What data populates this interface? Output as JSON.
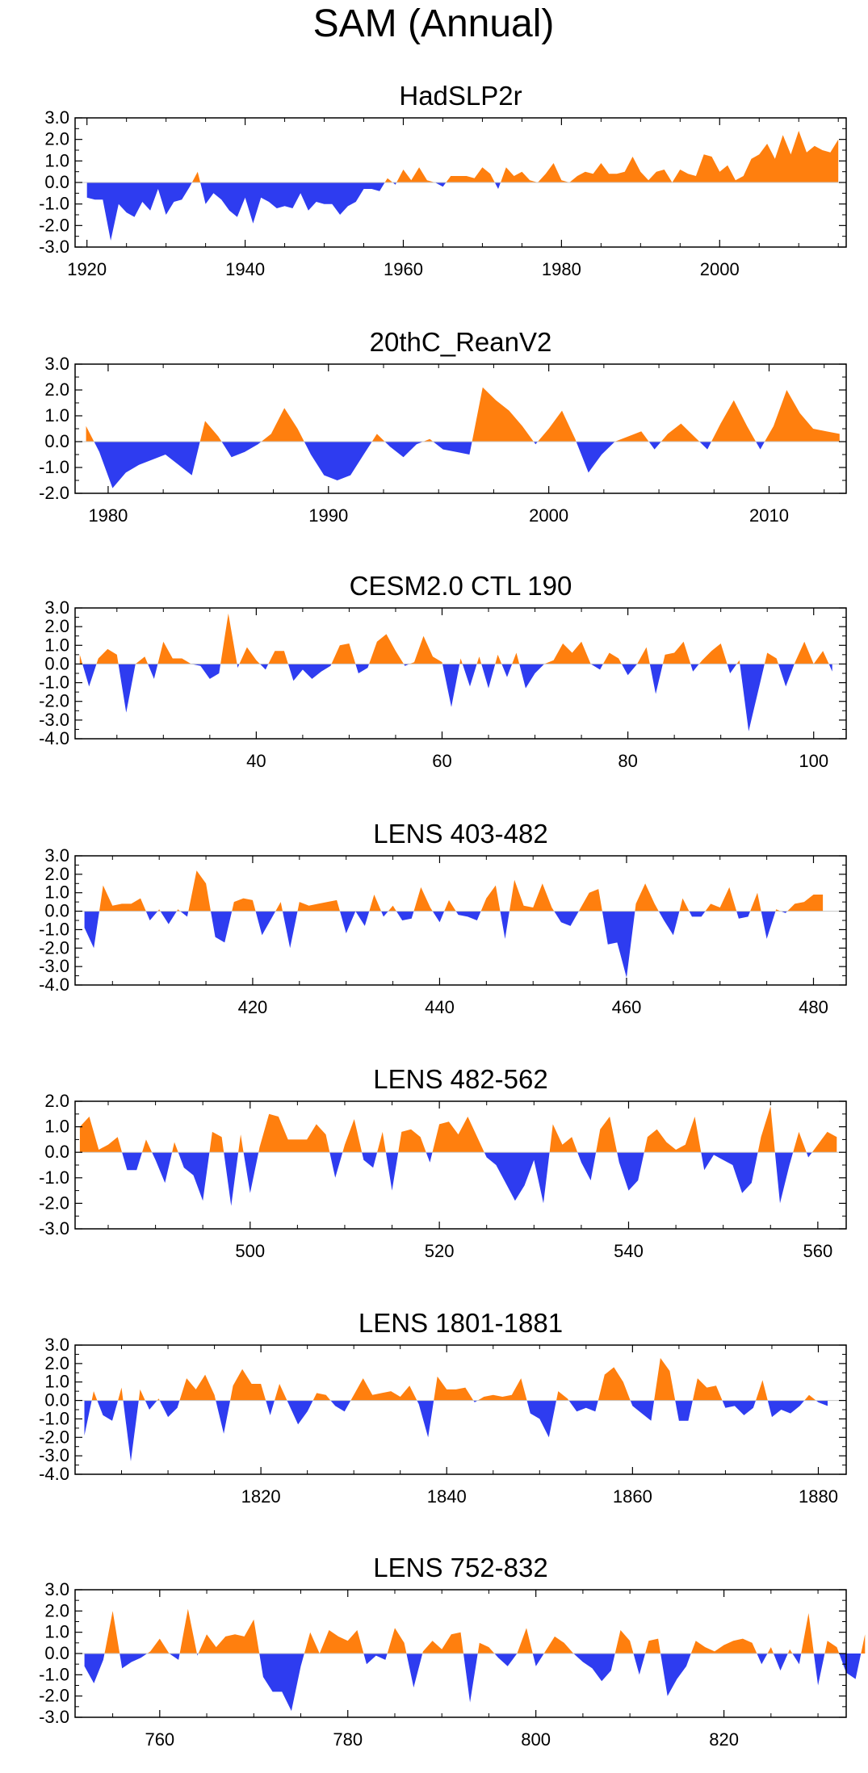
{
  "title": "SAM (Annual)",
  "colors": {
    "positive": "#ff7f0e",
    "negative": "#2e3cf0",
    "axis": "#000000"
  },
  "chart_data": [
    {
      "type": "area",
      "title": "HadSLP2r",
      "xlim": [
        1918.5,
        2016
      ],
      "ylim": [
        -3.0,
        3.0
      ],
      "yticks": [
        "3.0",
        "2.0",
        "1.0",
        "0.0",
        "-1.0",
        "-2.0",
        "-3.0"
      ],
      "yticks_values": [
        3,
        2,
        1,
        0,
        -1,
        -2,
        -3
      ],
      "xticks": [
        1920,
        1940,
        1960,
        1980,
        2000
      ],
      "series": [
        {
          "name": "HadSLP2r",
          "x0": 1920,
          "values": [
            -0.7,
            -0.8,
            -0.8,
            -2.7,
            -1.0,
            -1.4,
            -1.6,
            -0.9,
            -1.3,
            -0.3,
            -1.5,
            -0.9,
            -0.8,
            -0.2,
            0.5,
            -1.0,
            -0.5,
            -0.8,
            -1.3,
            -1.6,
            -0.7,
            -1.9,
            -0.7,
            -0.9,
            -1.2,
            -1.1,
            -1.2,
            -0.5,
            -1.3,
            -0.9,
            -1.0,
            -1.0,
            -1.5,
            -1.1,
            -0.9,
            -0.3,
            -0.3,
            -0.4,
            0.2,
            -0.1,
            0.6,
            0.1,
            0.7,
            0.1,
            0.0,
            -0.2,
            0.3,
            0.3,
            0.3,
            0.2,
            0.7,
            0.4,
            -0.3,
            0.7,
            0.3,
            0.5,
            0.1,
            0.0,
            0.4,
            0.9,
            0.1,
            0.0,
            0.3,
            0.5,
            0.4,
            0.9,
            0.4,
            0.4,
            0.5,
            1.2,
            0.5,
            0.1,
            0.5,
            0.6,
            0.0,
            0.6,
            0.4,
            0.3,
            1.3,
            1.2,
            0.5,
            0.8,
            0.1,
            0.3,
            1.1,
            1.3,
            1.8,
            1.1,
            2.2,
            1.3,
            2.4,
            1.4,
            1.7,
            1.5,
            1.4,
            2.0
          ]
        }
      ]
    },
    {
      "type": "area",
      "title": "20thC_ReanV2",
      "xlim": [
        1978.5,
        2013.5
      ],
      "ylim": [
        -2.0,
        3.0
      ],
      "yticks": [
        "3.0",
        "2.0",
        "1.0",
        "0.0",
        "-1.0",
        "-2.0"
      ],
      "yticks_values": [
        3,
        2,
        1,
        0,
        -1,
        -2
      ],
      "xticks": [
        1980,
        1990,
        2000,
        2010
      ],
      "series": [
        {
          "name": "20thC_ReanV2",
          "x0": 1979,
          "values": [
            0.6,
            -0.4,
            -1.8,
            -1.2,
            -0.9,
            -0.7,
            -0.5,
            -0.9,
            -1.3,
            0.8,
            0.2,
            -0.6,
            -0.4,
            -0.1,
            0.3,
            1.3,
            0.5,
            -0.5,
            -1.3,
            -1.5,
            -1.3,
            -0.5,
            0.3,
            -0.2,
            -0.6,
            -0.1,
            0.1,
            -0.3,
            -0.4,
            -0.5,
            2.1,
            1.6,
            1.2,
            0.6,
            -0.1,
            0.5,
            1.2,
            0.1,
            -1.2,
            -0.5,
            0.0,
            0.2,
            0.4,
            -0.3,
            0.3,
            0.7,
            0.2,
            -0.3,
            0.7,
            1.6,
            0.6,
            -0.3,
            0.6,
            2.0,
            1.1,
            0.5,
            0.4,
            0.3
          ]
        }
      ],
      "x_step": 0.6
    },
    {
      "type": "area",
      "title": "CESM2.0 CTL 190",
      "xlim": [
        20.5,
        103.5
      ],
      "ylim": [
        -4.0,
        3.0
      ],
      "yticks": [
        "3.0",
        "2.0",
        "1.0",
        "0.0",
        "-1.0",
        "-2.0",
        "-3.0",
        "-4.0"
      ],
      "yticks_values": [
        3,
        2,
        1,
        0,
        -1,
        -2,
        -3,
        -4
      ],
      "xticks": [
        40,
        60,
        80,
        100
      ],
      "series": [
        {
          "name": "CESM2.0 CTL 190",
          "x0": 21,
          "values": [
            0.5,
            -1.2,
            0.3,
            0.8,
            0.5,
            -2.6,
            0.0,
            0.4,
            -0.8,
            1.2,
            0.3,
            0.3,
            0.0,
            -0.1,
            -0.8,
            -0.5,
            2.7,
            -0.2,
            0.9,
            0.2,
            -0.3,
            0.7,
            0.7,
            -0.9,
            -0.3,
            -0.8,
            -0.4,
            -0.1,
            1.0,
            1.1,
            -0.5,
            -0.2,
            1.2,
            1.6,
            0.7,
            -0.1,
            0.1,
            1.5,
            0.4,
            0.1,
            -2.3,
            0.3,
            -1.2,
            0.4,
            -1.3,
            0.5,
            -0.7,
            0.6,
            -1.3,
            -0.5,
            0.0,
            0.2,
            1.1,
            0.6,
            1.2,
            0.0,
            -0.3,
            0.6,
            0.3,
            -0.6,
            0.0,
            0.9,
            -1.6,
            0.5,
            0.6,
            1.2,
            -0.4,
            0.2,
            0.7,
            1.1,
            -0.5,
            0.2,
            -3.6,
            -1.5,
            0.6,
            0.3,
            -1.2,
            0.1,
            1.2,
            0.0,
            0.7,
            -0.4
          ]
        }
      ]
    },
    {
      "type": "area",
      "title": "LENS 403-482",
      "xlim": [
        401,
        483.5
      ],
      "ylim": [
        -4.0,
        3.0
      ],
      "yticks": [
        "3.0",
        "2.0",
        "1.0",
        "0.0",
        "-1.0",
        "-2.0",
        "-3.0",
        "-4.0"
      ],
      "yticks_values": [
        3,
        2,
        1,
        0,
        -1,
        -2,
        -3,
        -4
      ],
      "xticks": [
        420,
        440,
        460,
        480
      ],
      "series": [
        {
          "name": "LENS 403-482",
          "x0": 402,
          "values": [
            -0.9,
            -2.0,
            1.4,
            0.3,
            0.4,
            0.4,
            0.7,
            -0.5,
            0.1,
            -0.7,
            0.1,
            -0.3,
            2.2,
            1.5,
            -1.4,
            -1.7,
            0.5,
            0.7,
            0.6,
            -1.3,
            -0.4,
            0.5,
            -2.0,
            0.5,
            0.3,
            0.4,
            0.5,
            0.6,
            -1.2,
            0.0,
            -0.8,
            0.9,
            -0.3,
            0.3,
            -0.5,
            -0.4,
            1.3,
            0.2,
            -0.6,
            0.6,
            -0.2,
            -0.3,
            -0.5,
            0.7,
            1.4,
            -1.5,
            1.7,
            0.3,
            0.2,
            1.5,
            0.2,
            -0.6,
            -0.8,
            0.1,
            1.0,
            1.2,
            -1.8,
            -1.7,
            -3.6,
            0.4,
            1.5,
            0.4,
            -0.5,
            -1.3,
            0.7,
            -0.3,
            -0.3,
            0.4,
            0.2,
            1.3,
            -0.4,
            -0.3,
            1.0,
            -1.5,
            0.1,
            -0.1,
            0.4,
            0.5,
            0.9,
            0.9
          ]
        }
      ]
    },
    {
      "type": "area",
      "title": "LENS 482-562",
      "xlim": [
        481.5,
        563
      ],
      "ylim": [
        -3.0,
        2.0
      ],
      "yticks": [
        "2.0",
        "1.0",
        "0.0",
        "-1.0",
        "-2.0",
        "-3.0"
      ],
      "yticks_values": [
        2,
        1,
        0,
        -1,
        -2,
        -3
      ],
      "xticks": [
        500,
        520,
        540,
        560
      ],
      "series": [
        {
          "name": "LENS 482-562",
          "x0": 482,
          "values": [
            1.0,
            1.4,
            0.1,
            0.3,
            0.6,
            -0.7,
            -0.7,
            0.5,
            -0.3,
            -1.2,
            0.4,
            -0.6,
            -0.9,
            -1.9,
            0.8,
            0.6,
            -2.1,
            0.7,
            -1.6,
            0.2,
            1.5,
            1.4,
            0.5,
            0.5,
            0.5,
            1.1,
            0.7,
            -1.0,
            0.3,
            1.3,
            -0.3,
            -0.6,
            0.8,
            -1.5,
            0.8,
            0.9,
            0.6,
            -0.4,
            1.1,
            1.2,
            0.7,
            1.4,
            0.6,
            -0.2,
            -0.5,
            -1.2,
            -1.9,
            -1.3,
            -0.3,
            -2.0,
            1.1,
            0.3,
            0.6,
            -0.4,
            -1.1,
            0.9,
            1.4,
            -0.4,
            -1.5,
            -1.1,
            0.6,
            0.9,
            0.4,
            0.1,
            0.3,
            1.4,
            -0.7,
            -0.1,
            -0.3,
            -0.5,
            -1.6,
            -1.2,
            0.6,
            1.8,
            -2.0,
            -0.5,
            0.8,
            -0.2,
            0.3,
            0.8,
            0.6
          ]
        }
      ]
    },
    {
      "type": "area",
      "title": "LENS 1801-1881",
      "xlim": [
        1800,
        1883
      ],
      "ylim": [
        -4.0,
        3.0
      ],
      "yticks": [
        "3.0",
        "2.0",
        "1.0",
        "0.0",
        "-1.0",
        "-2.0",
        "-3.0",
        "-4.0"
      ],
      "yticks_values": [
        3,
        2,
        1,
        0,
        -1,
        -2,
        -3,
        -4
      ],
      "xticks": [
        1820,
        1840,
        1860,
        1880
      ],
      "series": [
        {
          "name": "LENS 1801-1881",
          "x0": 1801,
          "values": [
            -1.9,
            0.5,
            -0.8,
            -1.1,
            0.7,
            -3.3,
            0.6,
            -0.5,
            0.1,
            -0.9,
            -0.4,
            1.2,
            0.6,
            1.4,
            0.3,
            -1.8,
            0.8,
            1.7,
            0.9,
            0.9,
            -0.8,
            0.9,
            -0.2,
            -1.3,
            -0.6,
            0.4,
            0.3,
            -0.3,
            -0.6,
            0.3,
            1.2,
            0.3,
            0.4,
            0.5,
            0.2,
            0.8,
            -0.2,
            -2.0,
            1.3,
            0.6,
            0.6,
            0.7,
            -0.1,
            0.2,
            0.3,
            0.2,
            0.3,
            1.2,
            -0.7,
            -1.0,
            -2.0,
            0.5,
            0.1,
            -0.6,
            -0.4,
            -0.6,
            1.4,
            1.8,
            1.0,
            -0.3,
            -0.7,
            -1.1,
            2.3,
            1.6,
            -1.1,
            -1.1,
            1.2,
            0.7,
            0.8,
            -0.4,
            -0.3,
            -0.8,
            -0.4,
            1.1,
            -0.9,
            -0.5,
            -0.7,
            -0.3,
            0.3,
            -0.1,
            -0.3
          ]
        }
      ]
    },
    {
      "type": "area",
      "title": "LENS 752-832",
      "xlim": [
        751,
        833
      ],
      "ylim": [
        -3.0,
        3.0
      ],
      "yticks": [
        "3.0",
        "2.0",
        "1.0",
        "0.0",
        "-1.0",
        "-2.0",
        "-3.0"
      ],
      "yticks_values": [
        3,
        2,
        1,
        0,
        -1,
        -2,
        -3
      ],
      "xticks": [
        760,
        780,
        800,
        820
      ],
      "series": [
        {
          "name": "LENS 752-832",
          "x0": 752,
          "values": [
            -0.6,
            -1.4,
            -0.3,
            2.0,
            -0.7,
            -0.4,
            -0.2,
            0.1,
            0.7,
            0.0,
            -0.3,
            2.1,
            -0.1,
            0.9,
            0.3,
            0.8,
            0.9,
            0.8,
            1.6,
            -1.1,
            -1.8,
            -1.8,
            -2.7,
            -0.6,
            1.0,
            0.0,
            1.1,
            0.8,
            0.6,
            1.1,
            -0.5,
            -0.1,
            -0.3,
            1.2,
            0.5,
            -1.6,
            0.1,
            0.6,
            0.2,
            0.9,
            1.0,
            -2.3,
            0.5,
            0.3,
            -0.2,
            -0.6,
            0.0,
            1.2,
            -0.6,
            0.1,
            0.8,
            0.5,
            0.0,
            -0.4,
            -0.7,
            -1.3,
            -0.8,
            1.1,
            0.6,
            -1.0,
            0.6,
            0.7,
            -2.0,
            -1.2,
            -0.6,
            0.6,
            0.3,
            0.1,
            0.4,
            0.6,
            0.7,
            0.5,
            -0.5,
            0.3,
            -0.8,
            0.2,
            -0.5,
            1.9,
            -1.5,
            0.6,
            0.3,
            -0.9,
            -1.2,
            0.9
          ]
        }
      ]
    }
  ]
}
